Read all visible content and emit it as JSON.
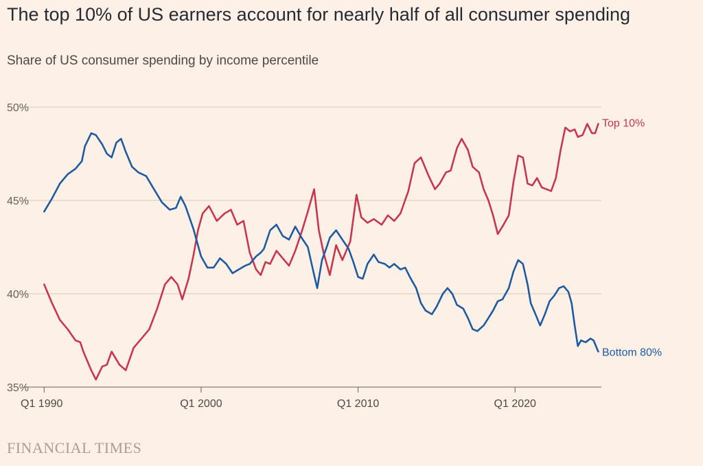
{
  "title": "The top 10% of US earners account for nearly half of all consumer spending",
  "subtitle": "Share of US consumer spending by income percentile",
  "source": "FINANCIAL TIMES",
  "colors": {
    "top10": "#c7364f",
    "bottom80": "#1f5a9e",
    "grid": "#d9c8bb",
    "axis": "#66605c"
  },
  "chart_data": {
    "type": "line",
    "title": "The top 10% of US earners account for nearly half of all consumer spending",
    "subtitle": "Share of US consumer spending by income percentile",
    "xlabel": "",
    "ylabel": "",
    "xlim": [
      1989.9,
      2025.5
    ],
    "ylim": [
      35,
      50
    ],
    "yticks": [
      35,
      40,
      45,
      50
    ],
    "ytick_labels": [
      "35%",
      "40%",
      "45%",
      "50%"
    ],
    "xticks": [
      1990,
      2000,
      2010,
      2020
    ],
    "xtick_labels": [
      "Q1 1990",
      "Q1 2000",
      "Q1 2010",
      "Q1 2020"
    ],
    "grid": true,
    "legend": "series labels at right end of lines",
    "series": [
      {
        "name": "Top 10%",
        "color": "#c7364f",
        "x": [
          1990.0,
          1990.5,
          1991.0,
          1991.5,
          1992.0,
          1992.3,
          1992.5,
          1993.0,
          1993.3,
          1993.7,
          1994.0,
          1994.3,
          1994.8,
          1995.2,
          1995.7,
          1996.2,
          1996.7,
          1997.2,
          1997.7,
          1998.1,
          1998.5,
          1998.8,
          1999.2,
          1999.5,
          1999.8,
          2000.1,
          2000.5,
          2001.0,
          2001.5,
          2001.9,
          2002.3,
          2002.7,
          2003.1,
          2003.5,
          2003.8,
          2004.1,
          2004.4,
          2004.8,
          2005.2,
          2005.6,
          2006.0,
          2006.4,
          2006.8,
          2007.2,
          2007.5,
          2007.8,
          2008.2,
          2008.6,
          2009.0,
          2009.5,
          2009.9,
          2010.2,
          2010.6,
          2011.0,
          2011.5,
          2011.9,
          2012.3,
          2012.7,
          2013.2,
          2013.6,
          2014.0,
          2014.5,
          2014.9,
          2015.2,
          2015.6,
          2015.9,
          2016.3,
          2016.6,
          2017.0,
          2017.3,
          2017.7,
          2018.0,
          2018.3,
          2018.6,
          2018.9,
          2019.2,
          2019.6,
          2019.9,
          2020.2,
          2020.5,
          2020.8,
          2021.1,
          2021.4,
          2021.7,
          2022.0,
          2022.3,
          2022.6,
          2022.9,
          2023.2,
          2023.5,
          2023.8,
          2024.0,
          2024.3,
          2024.6,
          2024.9,
          2025.1,
          2025.3
        ],
        "values": [
          40.5,
          39.5,
          38.6,
          38.1,
          37.5,
          37.4,
          36.9,
          35.9,
          35.4,
          36.1,
          36.2,
          36.9,
          36.2,
          35.9,
          37.1,
          37.6,
          38.1,
          39.2,
          40.5,
          40.9,
          40.5,
          39.7,
          40.8,
          42.0,
          43.4,
          44.3,
          44.7,
          43.9,
          44.3,
          44.5,
          43.7,
          43.9,
          42.2,
          41.3,
          41.0,
          41.7,
          41.6,
          42.3,
          41.9,
          41.5,
          42.3,
          43.3,
          44.4,
          45.6,
          43.4,
          42.2,
          41.0,
          42.6,
          41.8,
          42.8,
          45.3,
          44.1,
          43.8,
          44.0,
          43.7,
          44.2,
          43.9,
          44.3,
          45.5,
          47.0,
          47.3,
          46.3,
          45.6,
          45.9,
          46.5,
          46.6,
          47.8,
          48.3,
          47.7,
          46.8,
          46.5,
          45.6,
          45.0,
          44.2,
          43.2,
          43.6,
          44.2,
          46.0,
          47.4,
          47.3,
          45.9,
          45.8,
          46.2,
          45.7,
          45.6,
          45.5,
          46.2,
          47.7,
          48.9,
          48.7,
          48.8,
          48.4,
          48.5,
          49.1,
          48.6,
          48.6,
          49.1
        ]
      },
      {
        "name": "Bottom 80%",
        "color": "#1f5a9e",
        "x": [
          1990.0,
          1990.5,
          1991.0,
          1991.5,
          1992.0,
          1992.4,
          1992.6,
          1993.0,
          1993.3,
          1993.7,
          1994.0,
          1994.3,
          1994.6,
          1994.9,
          1995.2,
          1995.6,
          1996.0,
          1996.5,
          1997.0,
          1997.5,
          1998.0,
          1998.4,
          1998.7,
          1999.0,
          1999.5,
          2000.0,
          2000.4,
          2000.8,
          2001.2,
          2001.6,
          2002.0,
          2002.4,
          2002.8,
          2003.1,
          2003.5,
          2003.8,
          2004.0,
          2004.4,
          2004.8,
          2005.2,
          2005.6,
          2006.0,
          2006.4,
          2006.8,
          2007.2,
          2007.4,
          2007.7,
          2008.0,
          2008.2,
          2008.6,
          2009.0,
          2009.4,
          2009.7,
          2010.0,
          2010.3,
          2010.6,
          2011.0,
          2011.3,
          2011.7,
          2012.0,
          2012.3,
          2012.7,
          2013.0,
          2013.3,
          2013.7,
          2014.0,
          2014.3,
          2014.7,
          2015.0,
          2015.4,
          2015.7,
          2016.0,
          2016.3,
          2016.7,
          2017.0,
          2017.3,
          2017.6,
          2018.0,
          2018.3,
          2018.6,
          2018.9,
          2019.2,
          2019.6,
          2019.9,
          2020.2,
          2020.5,
          2020.8,
          2021.0,
          2021.3,
          2021.6,
          2021.9,
          2022.2,
          2022.5,
          2022.8,
          2023.1,
          2023.4,
          2023.6,
          2023.8,
          2024.0,
          2024.2,
          2024.5,
          2024.8,
          2025.0,
          2025.3
        ],
        "values": [
          44.4,
          45.1,
          45.9,
          46.4,
          46.7,
          47.1,
          47.9,
          48.6,
          48.5,
          48.0,
          47.5,
          47.3,
          48.1,
          48.3,
          47.6,
          46.8,
          46.5,
          46.3,
          45.6,
          44.9,
          44.5,
          44.6,
          45.2,
          44.7,
          43.5,
          42.0,
          41.4,
          41.4,
          41.9,
          41.6,
          41.1,
          41.3,
          41.5,
          41.6,
          42.0,
          42.2,
          42.4,
          43.4,
          43.7,
          43.1,
          42.9,
          43.6,
          43.0,
          42.5,
          41.0,
          40.3,
          41.8,
          42.5,
          43.0,
          43.4,
          42.9,
          42.4,
          41.7,
          40.9,
          40.8,
          41.6,
          42.1,
          41.7,
          41.6,
          41.4,
          41.6,
          41.3,
          41.4,
          40.9,
          40.3,
          39.5,
          39.1,
          38.9,
          39.3,
          40.0,
          40.3,
          40.0,
          39.4,
          39.2,
          38.7,
          38.1,
          38.0,
          38.3,
          38.7,
          39.1,
          39.6,
          39.7,
          40.3,
          41.2,
          41.8,
          41.6,
          40.5,
          39.5,
          38.9,
          38.3,
          38.9,
          39.6,
          39.9,
          40.3,
          40.4,
          40.1,
          39.5,
          38.3,
          37.2,
          37.5,
          37.4,
          37.6,
          37.5,
          36.9
        ]
      }
    ]
  }
}
